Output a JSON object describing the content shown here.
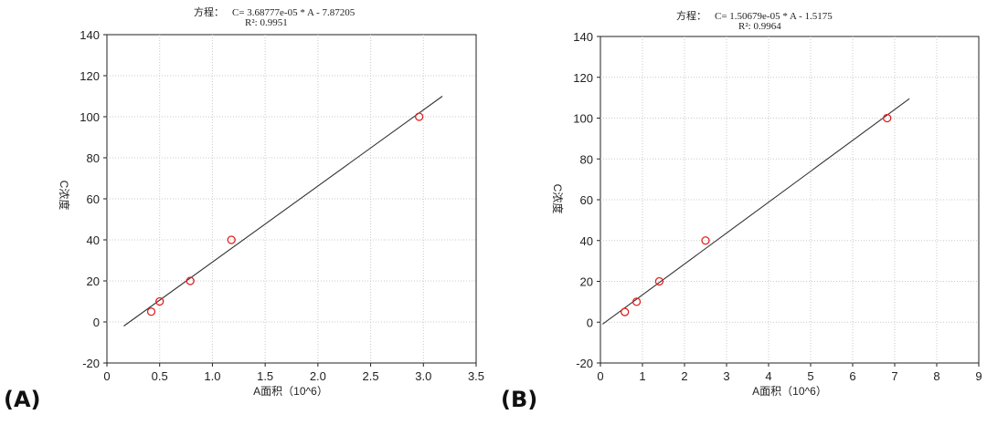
{
  "chart_data": [
    {
      "type": "scatter",
      "panel_label": "(A)",
      "equation_label": "方程：",
      "equation": "C= 3.68777e-05 * A - 7.87205",
      "r_squared": "R²: 0.9951",
      "xlabel": "A面积（10^6）",
      "ylabel": "C浓度",
      "xlim": [
        0,
        3.5
      ],
      "ylim": [
        -20,
        140
      ],
      "x_ticks": [
        "0",
        "0.5",
        "1.0",
        "1.5",
        "2.0",
        "2.5",
        "3.0",
        "3.5"
      ],
      "y_ticks": [
        "-20",
        "0",
        "20",
        "40",
        "60",
        "80",
        "100",
        "120",
        "140"
      ],
      "grid": true,
      "points": [
        {
          "x": 0.42,
          "y": 5
        },
        {
          "x": 0.5,
          "y": 10
        },
        {
          "x": 0.79,
          "y": 20
        },
        {
          "x": 1.18,
          "y": 40
        },
        {
          "x": 2.96,
          "y": 100
        }
      ],
      "fit_line": {
        "x": [
          0.16,
          3.18
        ],
        "y": [
          -2,
          110
        ]
      },
      "colors": {
        "points": "#e02020",
        "line": "#333333",
        "grid": "#c8c8c8"
      }
    },
    {
      "type": "scatter",
      "panel_label": "(B)",
      "equation_label": "方程：",
      "equation": "C= 1.50679e-05 * A - 1.5175",
      "r_squared": "R²: 0.9964",
      "xlabel": "A面积（10^6）",
      "ylabel": "C浓度",
      "xlim": [
        0,
        9
      ],
      "ylim": [
        -20,
        140
      ],
      "x_ticks": [
        "0",
        "1",
        "2",
        "3",
        "4",
        "5",
        "6",
        "7",
        "8",
        "9"
      ],
      "y_ticks": [
        "-20",
        "0",
        "20",
        "40",
        "60",
        "80",
        "100",
        "120",
        "140"
      ],
      "grid": true,
      "points": [
        {
          "x": 0.58,
          "y": 5
        },
        {
          "x": 0.86,
          "y": 10
        },
        {
          "x": 1.4,
          "y": 20
        },
        {
          "x": 2.5,
          "y": 40
        },
        {
          "x": 6.82,
          "y": 100
        }
      ],
      "fit_line": {
        "x": [
          0.05,
          7.35
        ],
        "y": [
          -1,
          109.5
        ]
      },
      "colors": {
        "points": "#e02020",
        "line": "#333333",
        "grid": "#c8c8c8"
      }
    }
  ]
}
